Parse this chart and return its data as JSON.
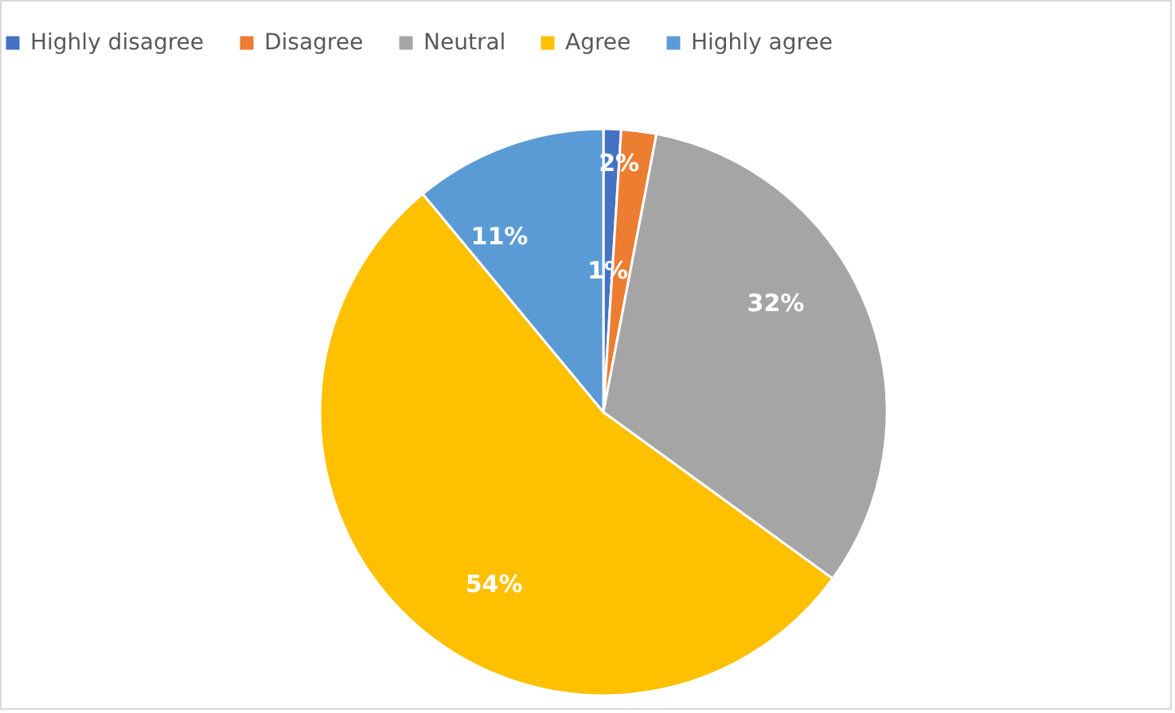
{
  "chart_data": {
    "type": "pie",
    "categories": [
      "Highly disagree",
      "Disagree",
      "Neutral",
      "Agree",
      "Highly agree"
    ],
    "values": [
      1,
      2,
      32,
      54,
      11
    ],
    "colors": [
      "#4472c4",
      "#ed7d31",
      "#a5a5a5",
      "#ffc000",
      "#5b9bd5"
    ],
    "value_labels": [
      "1%",
      "2%",
      "32%",
      "54%",
      "11%"
    ],
    "legend": "top"
  }
}
